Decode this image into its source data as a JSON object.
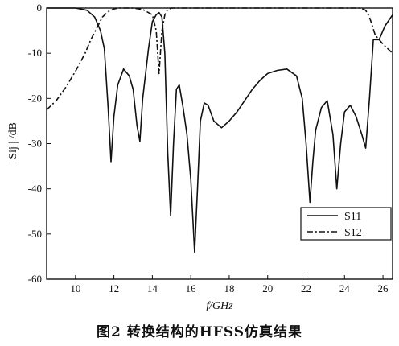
{
  "chart_data": {
    "type": "line",
    "xlabel": "f/GHz",
    "ylabel": "| Sij | /dB",
    "xlim": [
      8.5,
      26.5
    ],
    "ylim": [
      -60,
      0
    ],
    "xticks": [
      10,
      12,
      14,
      16,
      18,
      20,
      22,
      24,
      26
    ],
    "yticks": [
      0,
      -10,
      -20,
      -30,
      -40,
      -50,
      -60
    ],
    "grid": false,
    "legend_position": "bottom-right",
    "series": [
      {
        "name": "S11",
        "style": "solid",
        "x": [
          8.5,
          10.0,
          10.6,
          11.0,
          11.3,
          11.5,
          11.7,
          11.85,
          12.0,
          12.2,
          12.5,
          12.8,
          13.0,
          13.2,
          13.35,
          13.5,
          13.8,
          14.0,
          14.2,
          14.35,
          14.5,
          14.65,
          14.8,
          14.95,
          15.1,
          15.25,
          15.4,
          15.6,
          15.8,
          16.0,
          16.2,
          16.35,
          16.5,
          16.7,
          16.9,
          17.2,
          17.6,
          18.0,
          18.4,
          18.8,
          19.2,
          19.6,
          20.0,
          20.5,
          21.0,
          21.5,
          21.8,
          22.0,
          22.2,
          22.35,
          22.5,
          22.8,
          23.1,
          23.4,
          23.6,
          23.8,
          24.0,
          24.3,
          24.6,
          24.9,
          25.1,
          25.3,
          25.5,
          25.8,
          26.1,
          26.5
        ],
        "y": [
          0,
          0,
          -0.5,
          -2,
          -5,
          -9,
          -22,
          -34,
          -24,
          -17,
          -13.5,
          -15,
          -18,
          -26,
          -29.5,
          -20,
          -9,
          -3,
          -1.5,
          -1,
          -2,
          -10,
          -32,
          -46,
          -30,
          -18,
          -17,
          -22,
          -28,
          -38,
          -54,
          -40,
          -25,
          -21,
          -21.5,
          -25,
          -26.5,
          -25,
          -23,
          -20.5,
          -18,
          -16,
          -14.5,
          -13.8,
          -13.5,
          -15,
          -20,
          -30,
          -43,
          -34,
          -27,
          -22,
          -20.5,
          -28,
          -40,
          -30,
          -23,
          -21.5,
          -24,
          -28,
          -31,
          -20,
          -7,
          -7,
          -4,
          -1.5
        ]
      },
      {
        "name": "S12",
        "style": "dashdot",
        "x": [
          8.5,
          9.0,
          9.5,
          10.0,
          10.5,
          10.8,
          11.1,
          11.4,
          11.7,
          12.0,
          12.3,
          12.6,
          13.0,
          13.5,
          14.0,
          14.2,
          14.35,
          14.5,
          14.65,
          14.8,
          15.0,
          16.0,
          18.0,
          20.0,
          22.0,
          24.0,
          24.8,
          25.1,
          25.3,
          25.6,
          26.0,
          26.5
        ],
        "y": [
          -22.5,
          -20.5,
          -17.5,
          -14,
          -10,
          -7,
          -4.5,
          -2,
          -0.8,
          -0.2,
          0,
          0,
          0,
          -0.3,
          -1.5,
          -5,
          -14.5,
          -5,
          -1.5,
          -0.3,
          0,
          0,
          0,
          0,
          0,
          0,
          0,
          -0.5,
          -2,
          -6,
          -8,
          -10
        ]
      }
    ]
  },
  "caption": "图2   转换结构的HFSS仿真结果"
}
